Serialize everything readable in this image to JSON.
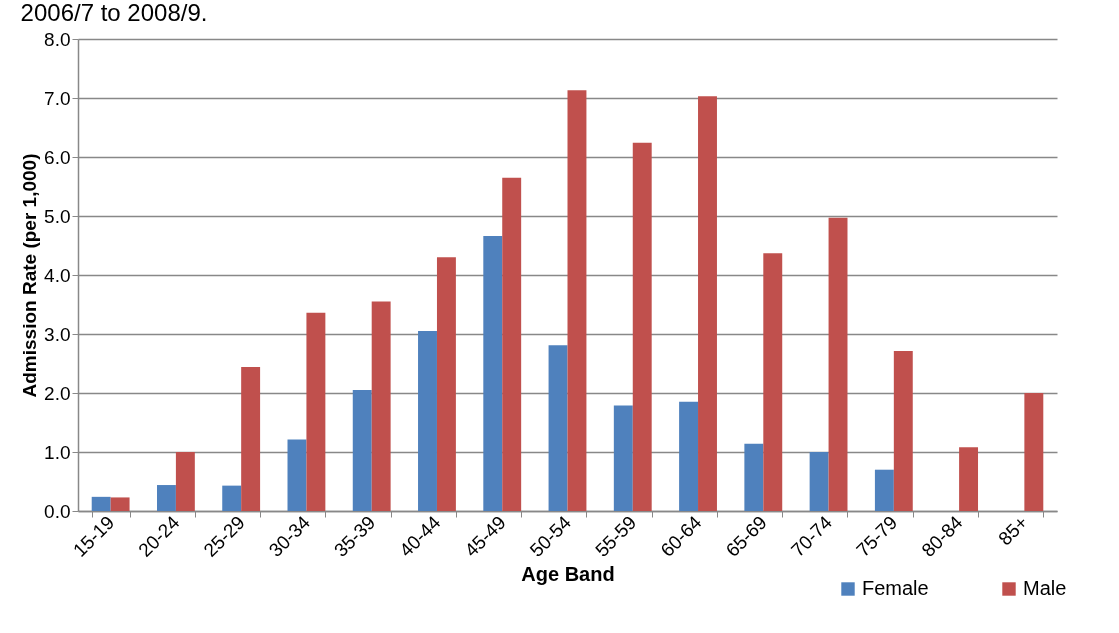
{
  "chart_data": {
    "type": "bar",
    "annotations": [
      "2006/7 to 2008/9."
    ],
    "xlabel": "Age Band",
    "ylabel": "Admission Rate (per 1,000)",
    "categories": [
      "15-19",
      "20-24",
      "25-29",
      "30-34",
      "35-39",
      "40-44",
      "45-49",
      "50-54",
      "55-59",
      "60-64",
      "65-69",
      "70-74",
      "75-79",
      "80-84",
      "85+"
    ],
    "series": [
      {
        "name": "Female",
        "color": "#4f81bd",
        "values": [
          0.24,
          0.44,
          0.43,
          1.21,
          2.05,
          3.05,
          4.66,
          2.81,
          1.79,
          1.85,
          1.14,
          1.0,
          0.7,
          null,
          null
        ]
      },
      {
        "name": "Male",
        "color": "#c0504d",
        "values": [
          0.23,
          1.0,
          2.44,
          3.36,
          3.55,
          4.3,
          5.65,
          7.13,
          6.24,
          7.03,
          4.37,
          4.97,
          2.71,
          1.08,
          2.0
        ]
      }
    ],
    "ylim": [
      0,
      8
    ],
    "yticks": [
      {
        "value": 0,
        "label": "0.0"
      },
      {
        "value": 1,
        "label": "1.0"
      },
      {
        "value": 2,
        "label": "2.0"
      },
      {
        "value": 3,
        "label": "3.0"
      },
      {
        "value": 4,
        "label": "4.0"
      },
      {
        "value": 5,
        "label": "5.0"
      },
      {
        "value": 6,
        "label": "6.0"
      },
      {
        "value": 7,
        "label": "7.0"
      },
      {
        "value": 8,
        "label": "8.0"
      }
    ],
    "grid": "y",
    "legend": "bottom right"
  }
}
